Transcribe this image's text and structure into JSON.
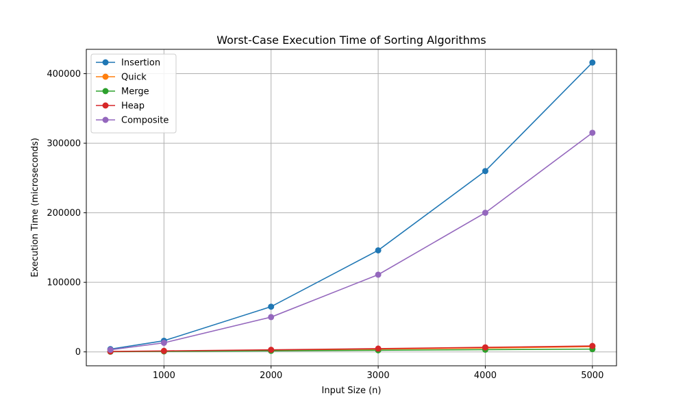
{
  "chart_data": {
    "type": "line",
    "title": "Worst-Case Execution Time of Sorting Algorithms",
    "xlabel": "Input Size (n)",
    "ylabel": "Execution Time (microseconds)",
    "x": [
      500,
      1000,
      2000,
      3000,
      4000,
      5000
    ],
    "xlim": [
      275,
      5225
    ],
    "ylim": [
      -20000,
      435000
    ],
    "xticks": [
      1000,
      2000,
      3000,
      4000,
      5000
    ],
    "yticks": [
      0,
      100000,
      200000,
      300000,
      400000
    ],
    "xtick_labels": [
      "1000",
      "2000",
      "3000",
      "4000",
      "5000"
    ],
    "ytick_labels": [
      "0",
      "100000",
      "200000",
      "300000",
      "400000"
    ],
    "grid": true,
    "legend_position": "top-left",
    "series": [
      {
        "name": "Insertion",
        "color": "#1f77b4",
        "values": [
          4000,
          16000,
          65000,
          146000,
          260000,
          416000
        ]
      },
      {
        "name": "Quick",
        "color": "#ff7f0e",
        "values": [
          500,
          1000,
          2500,
          4000,
          5500,
          7500
        ]
      },
      {
        "name": "Merge",
        "color": "#2ca02c",
        "values": [
          300,
          700,
          1500,
          2300,
          3200,
          4000
        ]
      },
      {
        "name": "Heap",
        "color": "#d62728",
        "values": [
          600,
          1400,
          3000,
          4700,
          6500,
          8500
        ]
      },
      {
        "name": "Composite",
        "color": "#9467bd",
        "values": [
          3000,
          13000,
          50000,
          111000,
          200000,
          315000
        ]
      }
    ]
  }
}
